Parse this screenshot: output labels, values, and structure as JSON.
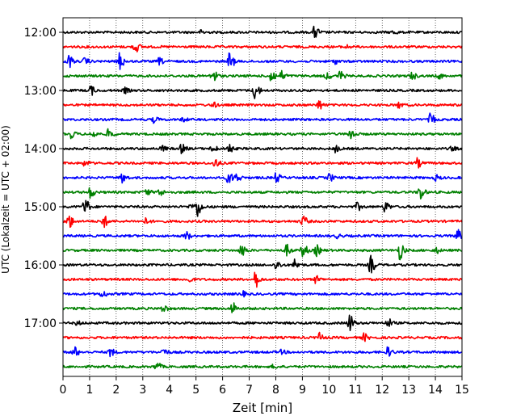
{
  "chart_data": {
    "type": "line",
    "title": "",
    "xlabel": "Zeit  [min]",
    "ylabel": "UTC (Lokalzeit = UTC + 02:00)",
    "xlim": [
      0,
      15
    ],
    "x_ticks": [
      "0",
      "1",
      "2",
      "3",
      "4",
      "5",
      "6",
      "7",
      "8",
      "9",
      "10",
      "11",
      "12",
      "13",
      "14",
      "15"
    ],
    "y_tick_labels": [
      "12:00",
      "13:00",
      "14:00",
      "15:00",
      "16:00",
      "17:00"
    ],
    "grid": "vertical dotted at each minute",
    "trace_color_cycle": [
      "#000000",
      "#ff0000",
      "#0000ff",
      "#008000"
    ],
    "traces": [
      {
        "start": "12:00",
        "events": [
          [
            5.2,
            0.25
          ],
          [
            9.45,
            0.7
          ],
          [
            12.4,
            0.2
          ]
        ]
      },
      {
        "start": "12:15",
        "events": [
          [
            2.7,
            0.6
          ],
          [
            10.6,
            0.2
          ]
        ]
      },
      {
        "start": "12:30",
        "events": [
          [
            0.2,
            0.7
          ],
          [
            0.8,
            0.35
          ],
          [
            2.1,
            1.0
          ],
          [
            3.6,
            0.35
          ],
          [
            6.25,
            1.0
          ],
          [
            10.2,
            0.25
          ]
        ]
      },
      {
        "start": "12:45",
        "events": [
          [
            5.6,
            0.9
          ],
          [
            7.8,
            0.8
          ],
          [
            8.2,
            0.5
          ],
          [
            9.9,
            0.4
          ],
          [
            10.4,
            0.5
          ],
          [
            13.1,
            0.4
          ],
          [
            14.1,
            0.3
          ]
        ]
      },
      {
        "start": "13:00",
        "events": [
          [
            1.0,
            0.6
          ],
          [
            2.3,
            0.3
          ],
          [
            7.2,
            1.0
          ]
        ]
      },
      {
        "start": "13:15",
        "events": [
          [
            5.6,
            0.3
          ],
          [
            9.6,
            0.5
          ],
          [
            12.6,
            0.3
          ]
        ]
      },
      {
        "start": "13:30",
        "events": [
          [
            3.4,
            0.3
          ],
          [
            4.5,
            0.2
          ],
          [
            13.8,
            0.6
          ]
        ]
      },
      {
        "start": "13:45",
        "events": [
          [
            0.3,
            0.4
          ],
          [
            1.1,
            0.4
          ],
          [
            1.7,
            0.5
          ],
          [
            10.8,
            0.7
          ]
        ]
      },
      {
        "start": "14:00",
        "events": [
          [
            3.7,
            0.3
          ],
          [
            4.45,
            0.5
          ],
          [
            5.6,
            0.45
          ],
          [
            6.2,
            0.6
          ],
          [
            10.2,
            0.4
          ],
          [
            14.6,
            0.2
          ]
        ]
      },
      {
        "start": "14:15",
        "events": [
          [
            0.8,
            0.3
          ],
          [
            5.7,
            0.5
          ],
          [
            13.3,
            0.5
          ]
        ]
      },
      {
        "start": "14:30",
        "events": [
          [
            2.2,
            0.6
          ],
          [
            6.2,
            0.7
          ],
          [
            6.5,
            0.5
          ],
          [
            8.0,
            0.5
          ],
          [
            10.0,
            0.4
          ],
          [
            14.0,
            0.3
          ]
        ]
      },
      {
        "start": "14:45",
        "events": [
          [
            1.0,
            0.6
          ],
          [
            3.1,
            0.4
          ],
          [
            3.6,
            0.4
          ],
          [
            13.4,
            0.9
          ]
        ]
      },
      {
        "start": "15:00",
        "events": [
          [
            0.8,
            1.0
          ],
          [
            4.8,
            0.4
          ],
          [
            5.05,
            1.0
          ],
          [
            11.05,
            0.4
          ],
          [
            12.1,
            0.6
          ]
        ]
      },
      {
        "start": "15:15",
        "events": [
          [
            0.2,
            0.8
          ],
          [
            1.5,
            0.7
          ],
          [
            3.1,
            0.3
          ],
          [
            9.0,
            0.6
          ]
        ]
      },
      {
        "start": "15:30",
        "events": [
          [
            4.6,
            0.5
          ],
          [
            10.3,
            0.2
          ],
          [
            14.8,
            0.7
          ]
        ]
      },
      {
        "start": "15:45",
        "events": [
          [
            6.7,
            0.7
          ],
          [
            8.4,
            0.6
          ],
          [
            9.0,
            0.8
          ],
          [
            9.5,
            0.6
          ],
          [
            12.65,
            1.0
          ],
          [
            14.0,
            0.3
          ]
        ]
      },
      {
        "start": "16:00",
        "events": [
          [
            8.0,
            0.5
          ],
          [
            8.7,
            0.6
          ],
          [
            11.55,
            1.0
          ]
        ]
      },
      {
        "start": "16:15",
        "events": [
          [
            4.7,
            0.3
          ],
          [
            7.2,
            1.0
          ],
          [
            9.5,
            0.4
          ]
        ]
      },
      {
        "start": "16:30",
        "events": [
          [
            1.45,
            0.4
          ],
          [
            6.7,
            0.3
          ]
        ]
      },
      {
        "start": "16:45",
        "events": [
          [
            3.75,
            0.4
          ],
          [
            6.35,
            0.7
          ]
        ]
      },
      {
        "start": "17:00",
        "events": [
          [
            0.5,
            0.2
          ],
          [
            10.75,
            1.0
          ],
          [
            12.2,
            0.5
          ]
        ]
      },
      {
        "start": "17:15",
        "events": [
          [
            9.6,
            0.5
          ],
          [
            11.3,
            0.4
          ]
        ]
      },
      {
        "start": "17:30",
        "events": [
          [
            0.4,
            0.6
          ],
          [
            1.75,
            0.5
          ],
          [
            3.75,
            0.4
          ],
          [
            8.2,
            0.2
          ],
          [
            12.2,
            0.5
          ]
        ]
      },
      {
        "start": "17:45",
        "events": [
          [
            3.5,
            0.5
          ],
          [
            7.9,
            0.2
          ]
        ]
      }
    ]
  }
}
